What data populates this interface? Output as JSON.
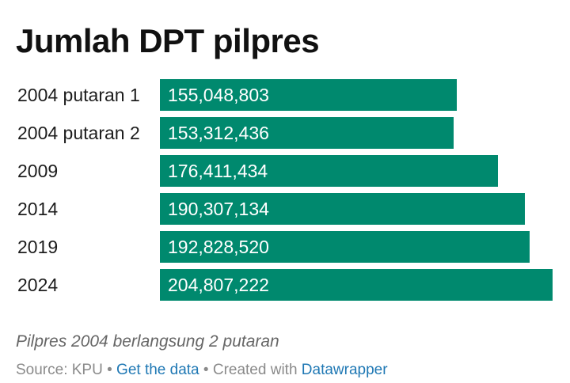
{
  "chart_data": {
    "type": "bar",
    "orientation": "horizontal",
    "title": "Jumlah DPT pilpres",
    "categories": [
      "2004 putaran 1",
      "2004 putaran 2",
      "2009",
      "2014",
      "2019",
      "2024"
    ],
    "values": [
      155048803,
      153312436,
      176411434,
      190307134,
      192828520,
      204807222
    ],
    "value_labels": [
      "155,048,803",
      "153,312,436",
      "176,411,434",
      "190,307,134",
      "192,828,520",
      "204,807,222"
    ],
    "bar_color": "#00896e",
    "xlim": [
      0,
      204807222
    ],
    "grid": false,
    "legend": "none"
  },
  "notes": "Pilpres 2004 berlangsung 2 putaran",
  "footer": {
    "source": "Source: KPU",
    "separator": "•",
    "get_data_label": "Get the data",
    "created_with": "Created with",
    "tool_name": "Datawrapper"
  }
}
